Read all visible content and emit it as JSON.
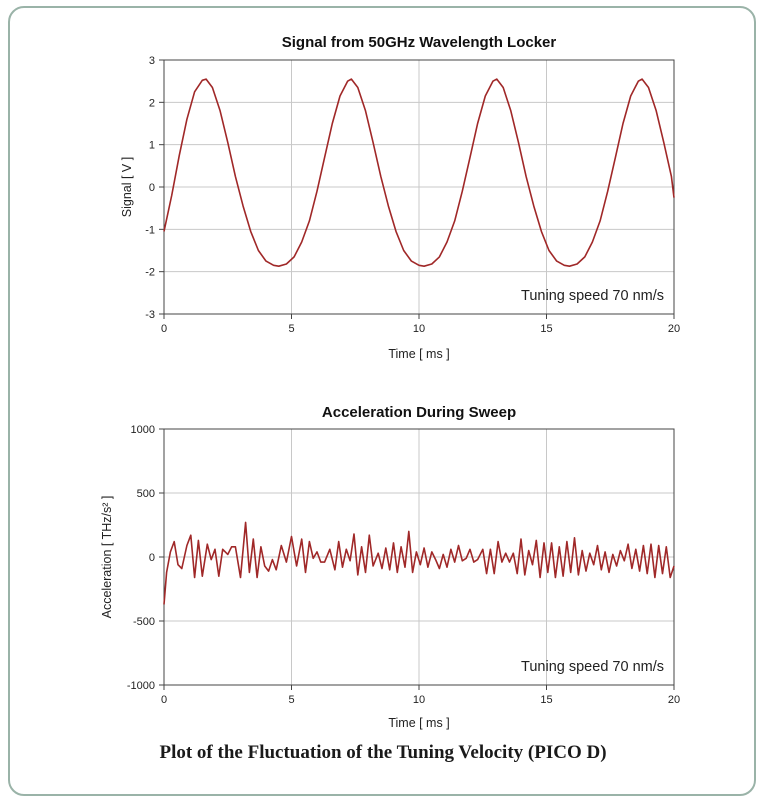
{
  "caption": "Plot of the Fluctuation of the Tuning Velocity (PICO D)",
  "colors": {
    "line": "#a02828",
    "grid": "#c8c8c8",
    "frame": "#9ab3a8"
  },
  "chart_data": [
    {
      "type": "line",
      "title": "Signal from 50GHz Wavelength Locker",
      "xlabel": "Time [ ms ]",
      "ylabel": "Signal [ V ]",
      "xlim": [
        0,
        20
      ],
      "ylim": [
        -3,
        3
      ],
      "xticks": [
        "0",
        "5",
        "10",
        "15",
        "20"
      ],
      "yticks": [
        "-3",
        "-2",
        "-1",
        "0",
        "1",
        "2",
        "3"
      ],
      "annotation": "Tuning speed 70 nm/s",
      "grid": "vertical at x ticks, horizontal at y ticks",
      "series": [
        {
          "x": [
            0,
            0.3,
            0.6,
            0.9,
            1.2,
            1.5,
            1.65,
            1.9,
            2.2,
            2.5,
            2.8,
            3.1,
            3.4,
            3.7,
            4.0,
            4.3,
            4.5,
            4.8,
            5.1,
            5.4,
            5.7,
            6.0,
            6.3,
            6.6,
            6.9,
            7.2,
            7.35,
            7.6,
            7.9,
            8.2,
            8.5,
            8.8,
            9.1,
            9.4,
            9.7,
            10.0,
            10.2,
            10.5,
            10.8,
            11.1,
            11.4,
            11.7,
            12.0,
            12.3,
            12.6,
            12.9,
            13.05,
            13.3,
            13.6,
            13.9,
            14.2,
            14.5,
            14.8,
            15.1,
            15.4,
            15.7,
            15.9,
            16.2,
            16.5,
            16.8,
            17.1,
            17.4,
            17.7,
            18.0,
            18.3,
            18.6,
            18.75,
            19.0,
            19.3,
            19.6,
            19.9,
            20.0
          ],
          "y": [
            -1.05,
            -0.2,
            0.75,
            1.6,
            2.25,
            2.52,
            2.55,
            2.35,
            1.8,
            1.05,
            0.25,
            -0.45,
            -1.05,
            -1.5,
            -1.75,
            -1.85,
            -1.87,
            -1.82,
            -1.65,
            -1.3,
            -0.8,
            -0.1,
            0.7,
            1.5,
            2.15,
            2.5,
            2.55,
            2.35,
            1.8,
            1.05,
            0.25,
            -0.45,
            -1.05,
            -1.5,
            -1.75,
            -1.85,
            -1.87,
            -1.82,
            -1.65,
            -1.3,
            -0.8,
            -0.1,
            0.7,
            1.5,
            2.15,
            2.5,
            2.55,
            2.35,
            1.8,
            1.05,
            0.25,
            -0.45,
            -1.05,
            -1.5,
            -1.75,
            -1.85,
            -1.87,
            -1.82,
            -1.65,
            -1.3,
            -0.8,
            -0.1,
            0.7,
            1.5,
            2.15,
            2.5,
            2.55,
            2.35,
            1.8,
            1.05,
            0.25,
            -0.25
          ]
        }
      ]
    },
    {
      "type": "line",
      "title": "Acceleration During Sweep",
      "xlabel": "Time [ ms ]",
      "ylabel": "Acceleration [ THz/s² ]",
      "xlim": [
        0,
        20
      ],
      "ylim": [
        -1000,
        1000
      ],
      "xticks": [
        "0",
        "5",
        "10",
        "15",
        "20"
      ],
      "yticks": [
        "-1000",
        "-500",
        "0",
        "500",
        "1000"
      ],
      "annotation": "Tuning speed 70 nm/s",
      "grid": "vertical at x ticks, horizontal at y ticks",
      "series": [
        {
          "x": [
            0,
            0.1,
            0.25,
            0.4,
            0.55,
            0.7,
            0.9,
            1.05,
            1.2,
            1.35,
            1.5,
            1.7,
            1.85,
            2.0,
            2.15,
            2.3,
            2.5,
            2.65,
            2.8,
            3.0,
            3.2,
            3.35,
            3.5,
            3.65,
            3.8,
            3.95,
            4.1,
            4.25,
            4.4,
            4.6,
            4.8,
            5.0,
            5.2,
            5.4,
            5.55,
            5.7,
            5.85,
            6.0,
            6.15,
            6.3,
            6.5,
            6.7,
            6.85,
            7.0,
            7.15,
            7.3,
            7.45,
            7.6,
            7.75,
            7.9,
            8.05,
            8.2,
            8.4,
            8.55,
            8.7,
            8.85,
            9.0,
            9.15,
            9.3,
            9.45,
            9.6,
            9.75,
            9.9,
            10.05,
            10.2,
            10.35,
            10.5,
            10.65,
            10.8,
            10.95,
            11.1,
            11.25,
            11.4,
            11.55,
            11.7,
            11.85,
            12.0,
            12.15,
            12.3,
            12.5,
            12.65,
            12.8,
            12.95,
            13.1,
            13.25,
            13.4,
            13.55,
            13.7,
            13.85,
            14.0,
            14.15,
            14.3,
            14.45,
            14.6,
            14.75,
            14.9,
            15.05,
            15.2,
            15.35,
            15.5,
            15.65,
            15.8,
            15.95,
            16.1,
            16.25,
            16.4,
            16.55,
            16.7,
            16.85,
            17.0,
            17.15,
            17.3,
            17.45,
            17.6,
            17.75,
            17.9,
            18.05,
            18.2,
            18.35,
            18.5,
            18.65,
            18.8,
            18.95,
            19.1,
            19.25,
            19.4,
            19.55,
            19.7,
            19.85,
            20.0
          ],
          "y": [
            -370,
            -120,
            40,
            120,
            -60,
            -90,
            90,
            170,
            -160,
            130,
            -150,
            100,
            -20,
            60,
            -150,
            60,
            20,
            80,
            80,
            -160,
            270,
            -120,
            140,
            -160,
            80,
            -70,
            -110,
            -20,
            -100,
            90,
            -40,
            160,
            -70,
            140,
            -120,
            120,
            -10,
            40,
            -40,
            -40,
            60,
            -100,
            120,
            -80,
            60,
            -30,
            180,
            -140,
            80,
            -120,
            170,
            -70,
            30,
            -90,
            70,
            -100,
            110,
            -120,
            80,
            -80,
            200,
            -120,
            40,
            -60,
            70,
            -80,
            40,
            -20,
            -90,
            20,
            -80,
            60,
            -40,
            90,
            -30,
            -10,
            60,
            -40,
            -20,
            60,
            -130,
            60,
            -130,
            120,
            -40,
            30,
            -40,
            30,
            -130,
            140,
            -140,
            50,
            -60,
            130,
            -160,
            110,
            -120,
            110,
            -160,
            80,
            -150,
            120,
            -120,
            150,
            -140,
            50,
            -110,
            30,
            -60,
            90,
            -100,
            40,
            -120,
            20,
            -70,
            50,
            -30,
            100,
            -90,
            60,
            -110,
            90,
            -130,
            100,
            -160,
            90,
            -130,
            80,
            -160,
            -70
          ]
        }
      ]
    }
  ]
}
